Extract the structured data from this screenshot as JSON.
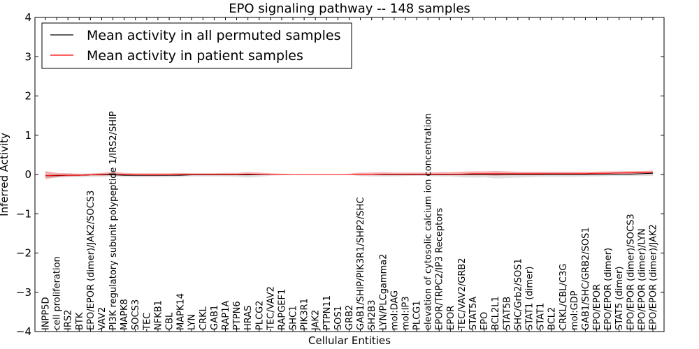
{
  "chart_data": {
    "type": "line",
    "title": "EPO signaling pathway -- 148 samples",
    "xlabel": "Cellular Entities",
    "ylabel": "Inferred Activity",
    "ylim": [
      -4,
      4
    ],
    "yticks": [
      "4",
      "3",
      "2",
      "1",
      "0",
      "−1",
      "−2",
      "−3",
      "−4"
    ],
    "grid": false,
    "legend_position": "top-left",
    "colors": {
      "permuted": "#000000",
      "patient": "#ff0000",
      "patient_band": "#f08080",
      "permuted_band": "#c8c8c8"
    },
    "categories": [
      "INPP5D",
      "cell proliferation",
      "IRS2",
      "BTK",
      "EPO/EPOR (dimer)/JAK2/SOCS3",
      "VAV2",
      "PI3K regulatory subunit polypeptide 1/IRS2/SHIP",
      "MAPK8",
      "SOCS3",
      "TEC",
      "NFKB1",
      "CBL",
      "MAPK14",
      "LYN",
      "CRKL",
      "GAB1",
      "RAP1A",
      "PTPN6",
      "HRAS",
      "PLCG2",
      "TEC/VAV2",
      "RAPGEF1",
      "SHC1",
      "PIK3R1",
      "JAK2",
      "PTPN11",
      "SOS1",
      "GRB2",
      "GAB1/SHIP/PIK3R1/SHP2/SHC",
      "SH2B3",
      "LYN/PLCgamma2",
      "mol:DAG",
      "mol:IP3",
      "PLCG1",
      "elevation of cytosolic calcium ion concentration",
      "EPOR/TRPC2/IP3 Receptors",
      "EPOR",
      "TEC/VAV2/GRB2",
      "STAT5A",
      "EPO",
      "BCL2L1",
      "STAT5B",
      "SHC/Grb2/SOS1",
      "STAT1 (dimer)",
      "STAT1",
      "BCL2",
      "CRKL/CBL/C3G",
      "mol:GDP",
      "GAB1/SHC/GRB2/SOS1",
      "EPO/EPOR",
      "EPO/EPOR (dimer)",
      "STAT5 (dimer)",
      "EPO/EPOR (dimer)/SOCS3",
      "EPO/EPOR (dimer)/LYN",
      "EPO/EPOR (dimer)/JAK2"
    ],
    "series": [
      {
        "name": "Mean activity in all permuted samples",
        "values": [
          -0.03,
          -0.03,
          -0.02,
          -0.02,
          -0.01,
          -0.01,
          -0.01,
          -0.02,
          -0.02,
          -0.02,
          -0.02,
          -0.02,
          -0.02,
          -0.01,
          -0.01,
          -0.01,
          -0.01,
          -0.01,
          -0.01,
          0.0,
          0.0,
          0.0,
          0.0,
          0.0,
          0.0,
          0.0,
          0.0,
          0.0,
          0.0,
          0.0,
          0.0,
          0.0,
          0.0,
          0.0,
          0.0,
          0.0,
          0.0,
          0.0,
          0.0,
          0.0,
          0.0,
          0.0,
          0.0,
          0.0,
          0.0,
          0.0,
          0.0,
          0.0,
          0.0,
          0.0,
          0.01,
          0.01,
          0.01,
          0.02,
          0.03
        ],
        "lower": [
          -0.08,
          -0.08,
          -0.07,
          -0.07,
          -0.06,
          -0.06,
          -0.05,
          -0.06,
          -0.07,
          -0.07,
          -0.07,
          -0.07,
          -0.06,
          -0.05,
          -0.05,
          -0.05,
          -0.05,
          -0.06,
          -0.08,
          -0.06,
          -0.03,
          -0.02,
          -0.01,
          0.0,
          0.0,
          0.0,
          0.0,
          -0.01,
          -0.04,
          -0.05,
          -0.05,
          -0.05,
          -0.04,
          -0.03,
          -0.04,
          -0.05,
          -0.05,
          -0.07,
          -0.08,
          -0.07,
          -0.1,
          -0.09,
          -0.08,
          -0.07,
          -0.06,
          -0.06,
          -0.06,
          -0.06,
          -0.05,
          -0.05,
          -0.04,
          -0.04,
          -0.04,
          -0.04,
          -0.04
        ],
        "upper": [
          0.03,
          0.02,
          0.02,
          0.02,
          0.03,
          0.03,
          0.03,
          0.02,
          0.02,
          0.02,
          0.02,
          0.02,
          0.02,
          0.02,
          0.02,
          0.02,
          0.02,
          0.02,
          0.02,
          0.02,
          0.01,
          0.01,
          0.01,
          0.0,
          0.0,
          0.0,
          0.0,
          0.01,
          0.02,
          0.02,
          0.02,
          0.02,
          0.02,
          0.02,
          0.02,
          0.02,
          0.02,
          0.03,
          0.03,
          0.03,
          0.04,
          0.04,
          0.04,
          0.04,
          0.04,
          0.04,
          0.04,
          0.04,
          0.04,
          0.05,
          0.05,
          0.06,
          0.06,
          0.07,
          0.08
        ]
      },
      {
        "name": "Mean activity in patient samples",
        "values": [
          -0.03,
          -0.02,
          -0.02,
          -0.02,
          -0.01,
          0.0,
          0.01,
          0.0,
          -0.01,
          -0.01,
          -0.01,
          -0.01,
          0.0,
          0.0,
          0.0,
          0.0,
          0.0,
          0.0,
          0.01,
          0.01,
          0.0,
          0.0,
          0.0,
          0.0,
          0.0,
          0.0,
          0.0,
          0.0,
          0.0,
          0.0,
          0.01,
          0.01,
          0.01,
          0.01,
          0.01,
          0.01,
          0.01,
          0.01,
          0.02,
          0.02,
          0.02,
          0.02,
          0.02,
          0.02,
          0.02,
          0.02,
          0.02,
          0.02,
          0.02,
          0.03,
          0.03,
          0.04,
          0.04,
          0.05,
          0.05
        ],
        "lower": [
          -0.12,
          -0.07,
          -0.05,
          -0.04,
          -0.03,
          -0.03,
          -0.02,
          -0.03,
          -0.04,
          -0.04,
          -0.04,
          -0.03,
          -0.03,
          -0.02,
          -0.02,
          -0.02,
          -0.02,
          -0.02,
          -0.02,
          -0.01,
          -0.01,
          -0.01,
          0.0,
          0.0,
          0.0,
          0.0,
          0.0,
          -0.01,
          -0.02,
          -0.02,
          -0.02,
          -0.02,
          -0.02,
          -0.02,
          -0.02,
          -0.02,
          -0.02,
          -0.02,
          -0.02,
          -0.02,
          -0.03,
          -0.02,
          -0.02,
          -0.02,
          -0.02,
          -0.01,
          -0.01,
          -0.01,
          -0.01,
          0.0,
          0.0,
          0.01,
          0.01,
          0.01,
          0.01
        ],
        "upper": [
          0.09,
          0.04,
          0.03,
          0.02,
          0.02,
          0.04,
          0.07,
          0.04,
          0.03,
          0.03,
          0.03,
          0.03,
          0.04,
          0.03,
          0.03,
          0.03,
          0.04,
          0.04,
          0.06,
          0.05,
          0.03,
          0.02,
          0.01,
          0.0,
          0.0,
          0.0,
          0.0,
          0.02,
          0.05,
          0.05,
          0.06,
          0.05,
          0.05,
          0.05,
          0.05,
          0.06,
          0.06,
          0.07,
          0.08,
          0.08,
          0.09,
          0.08,
          0.07,
          0.07,
          0.07,
          0.07,
          0.07,
          0.07,
          0.07,
          0.07,
          0.08,
          0.08,
          0.09,
          0.09,
          0.1
        ]
      }
    ]
  }
}
